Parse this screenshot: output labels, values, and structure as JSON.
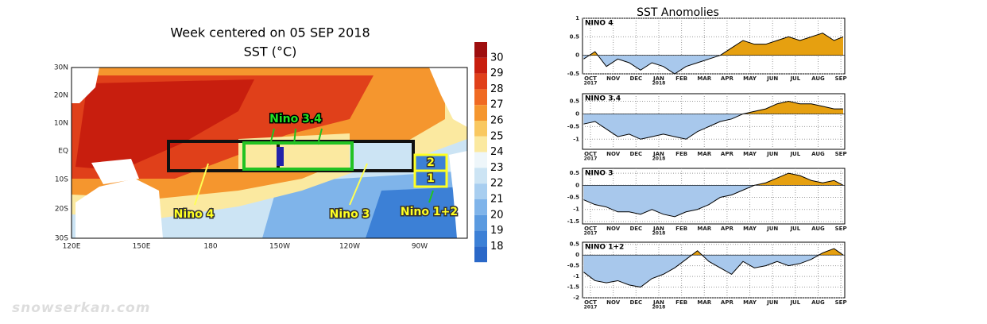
{
  "map": {
    "title": "Week centered on 05 SEP 2018",
    "subtitle": "SST (°C)",
    "lat_labels": [
      "30N",
      "20N",
      "10N",
      "EQ",
      "10S",
      "20S",
      "30S"
    ],
    "lon_labels": [
      "120E",
      "150E",
      "180",
      "150W",
      "120W",
      "90W"
    ],
    "colorbar": {
      "ticks": [
        30,
        29,
        28,
        27,
        26,
        25,
        24,
        23,
        22,
        21,
        20,
        19,
        18
      ],
      "colors": [
        "#9e0e0e",
        "#c81e0e",
        "#e0401a",
        "#f06a22",
        "#f5962e",
        "#f9c860",
        "#fbe9a0",
        "#eef6fa",
        "#cce4f4",
        "#a8cef0",
        "#7fb4ea",
        "#5a9ae0",
        "#3c80d6",
        "#2a68c8"
      ]
    },
    "regions": [
      "Nino 3.4",
      "Nino 4",
      "Nino 3",
      "Nino 1+2"
    ],
    "box_numbers": [
      "2",
      "1"
    ]
  },
  "anomaly_title": "SST Anomolies",
  "watermark": "snowserkan.com",
  "chart_data": [
    {
      "type": "area",
      "name": "NINO 4",
      "x": [
        0.7,
        1.2,
        1.7,
        2.2,
        2.7,
        3.2,
        3.7,
        4.2,
        4.7,
        5.2,
        5.7,
        6.2,
        6.7,
        7.2,
        7.7,
        8.2,
        8.7,
        9.2,
        9.7,
        10.2,
        10.7,
        11.2,
        11.7,
        12.1
      ],
      "values": [
        -0.1,
        0.1,
        -0.3,
        -0.1,
        -0.2,
        -0.4,
        -0.2,
        -0.3,
        -0.5,
        -0.3,
        -0.2,
        -0.1,
        0.0,
        0.2,
        0.4,
        0.3,
        0.3,
        0.4,
        0.5,
        0.4,
        0.5,
        0.6,
        0.4,
        0.5
      ],
      "xlim": [
        0.65,
        12.17
      ],
      "ylim": [
        -0.5,
        1
      ],
      "yticks": [
        1,
        0.5,
        0,
        -0.5
      ],
      "xticks": [
        {
          "value": 1,
          "label": "OCT"
        },
        {
          "value": 2,
          "label": "NOV"
        },
        {
          "value": 3,
          "label": "DEC"
        },
        {
          "value": 4,
          "label": "JAN"
        },
        {
          "value": 5,
          "label": "FEB"
        },
        {
          "value": 6,
          "label": "MAR"
        },
        {
          "value": 7,
          "label": "APR"
        },
        {
          "value": 8,
          "label": "MAY"
        },
        {
          "value": 9,
          "label": "JUN"
        },
        {
          "value": 10,
          "label": "JUL"
        },
        {
          "value": 11,
          "label": "AUG"
        },
        {
          "value": 12,
          "label": "SEP"
        }
      ],
      "year_labels": [
        {
          "value": 1,
          "label": "2017"
        },
        {
          "value": 4,
          "label": "2018"
        }
      ],
      "colors": {
        "positive": "#e6a010",
        "negative": "#a8c8ec"
      },
      "grid": true
    },
    {
      "type": "area",
      "name": "NINO 3.4",
      "x": [
        0.7,
        1.2,
        1.7,
        2.2,
        2.7,
        3.2,
        3.7,
        4.2,
        4.7,
        5.2,
        5.7,
        6.2,
        6.7,
        7.2,
        7.7,
        8.2,
        8.7,
        9.2,
        9.7,
        10.2,
        10.7,
        11.2,
        11.7,
        12.1
      ],
      "values": [
        -0.4,
        -0.3,
        -0.6,
        -0.9,
        -0.8,
        -1.0,
        -0.9,
        -0.8,
        -0.9,
        -1.0,
        -0.7,
        -0.5,
        -0.3,
        -0.2,
        0.0,
        0.1,
        0.2,
        0.4,
        0.5,
        0.4,
        0.4,
        0.3,
        0.2,
        0.2
      ],
      "xlim": [
        0.65,
        12.17
      ],
      "ylim": [
        -1.4,
        0.8
      ],
      "yticks": [
        0.5,
        0,
        -0.5,
        -1
      ],
      "xticks": [
        {
          "value": 1,
          "label": "OCT"
        },
        {
          "value": 2,
          "label": "NOV"
        },
        {
          "value": 3,
          "label": "DEC"
        },
        {
          "value": 4,
          "label": "JAN"
        },
        {
          "value": 5,
          "label": "FEB"
        },
        {
          "value": 6,
          "label": "MAR"
        },
        {
          "value": 7,
          "label": "APR"
        },
        {
          "value": 8,
          "label": "MAY"
        },
        {
          "value": 9,
          "label": "JUN"
        },
        {
          "value": 10,
          "label": "JUL"
        },
        {
          "value": 11,
          "label": "AUG"
        },
        {
          "value": 12,
          "label": "SEP"
        }
      ],
      "year_labels": [
        {
          "value": 1,
          "label": "2017"
        },
        {
          "value": 4,
          "label": "2018"
        }
      ],
      "colors": {
        "positive": "#e6a010",
        "negative": "#a8c8ec"
      },
      "grid": true
    },
    {
      "type": "area",
      "name": "NINO 3",
      "x": [
        0.7,
        1.2,
        1.7,
        2.2,
        2.7,
        3.2,
        3.7,
        4.2,
        4.7,
        5.2,
        5.7,
        6.2,
        6.7,
        7.2,
        7.7,
        8.2,
        8.7,
        9.2,
        9.7,
        10.2,
        10.7,
        11.2,
        11.7,
        12.1
      ],
      "values": [
        -0.6,
        -0.8,
        -0.9,
        -1.1,
        -1.1,
        -1.2,
        -1.0,
        -1.2,
        -1.3,
        -1.1,
        -1.0,
        -0.8,
        -0.5,
        -0.4,
        -0.2,
        0.0,
        0.1,
        0.3,
        0.5,
        0.4,
        0.2,
        0.1,
        0.2,
        0.0
      ],
      "xlim": [
        0.65,
        12.17
      ],
      "ylim": [
        -1.6,
        0.7
      ],
      "yticks": [
        0.5,
        0,
        -0.5,
        -1,
        -1.5
      ],
      "xticks": [
        {
          "value": 1,
          "label": "OCT"
        },
        {
          "value": 2,
          "label": "NOV"
        },
        {
          "value": 3,
          "label": "DEC"
        },
        {
          "value": 4,
          "label": "JAN"
        },
        {
          "value": 5,
          "label": "FEB"
        },
        {
          "value": 6,
          "label": "MAR"
        },
        {
          "value": 7,
          "label": "APR"
        },
        {
          "value": 8,
          "label": "MAY"
        },
        {
          "value": 9,
          "label": "JUN"
        },
        {
          "value": 10,
          "label": "JUL"
        },
        {
          "value": 11,
          "label": "AUG"
        },
        {
          "value": 12,
          "label": "SEP"
        }
      ],
      "year_labels": [
        {
          "value": 1,
          "label": "2017"
        },
        {
          "value": 4,
          "label": "2018"
        }
      ],
      "colors": {
        "positive": "#e6a010",
        "negative": "#a8c8ec"
      },
      "grid": true
    },
    {
      "type": "area",
      "name": "NINO 1+2",
      "x": [
        0.7,
        1.2,
        1.7,
        2.2,
        2.7,
        3.2,
        3.7,
        4.2,
        4.7,
        5.2,
        5.7,
        6.2,
        6.7,
        7.2,
        7.7,
        8.2,
        8.7,
        9.2,
        9.7,
        10.2,
        10.7,
        11.2,
        11.7,
        12.1
      ],
      "values": [
        -0.8,
        -1.2,
        -1.3,
        -1.2,
        -1.4,
        -1.5,
        -1.1,
        -0.9,
        -0.6,
        -0.2,
        0.2,
        -0.3,
        -0.6,
        -0.9,
        -0.3,
        -0.6,
        -0.5,
        -0.3,
        -0.5,
        -0.4,
        -0.2,
        0.1,
        0.3,
        0.0
      ],
      "xlim": [
        0.65,
        12.17
      ],
      "ylim": [
        -2,
        0.6
      ],
      "yticks": [
        0.5,
        0,
        -0.5,
        -1,
        -1.5,
        -2
      ],
      "xticks": [
        {
          "value": 1,
          "label": "OCT"
        },
        {
          "value": 2,
          "label": "NOV"
        },
        {
          "value": 3,
          "label": "DEC"
        },
        {
          "value": 4,
          "label": "JAN"
        },
        {
          "value": 5,
          "label": "FEB"
        },
        {
          "value": 6,
          "label": "MAR"
        },
        {
          "value": 7,
          "label": "APR"
        },
        {
          "value": 8,
          "label": "MAY"
        },
        {
          "value": 9,
          "label": "JUN"
        },
        {
          "value": 10,
          "label": "JUL"
        },
        {
          "value": 11,
          "label": "AUG"
        },
        {
          "value": 12,
          "label": "SEP"
        }
      ],
      "year_labels": [
        {
          "value": 1,
          "label": "2017"
        },
        {
          "value": 4,
          "label": "2018"
        }
      ],
      "colors": {
        "positive": "#e6a010",
        "negative": "#a8c8ec"
      },
      "grid": true
    }
  ]
}
